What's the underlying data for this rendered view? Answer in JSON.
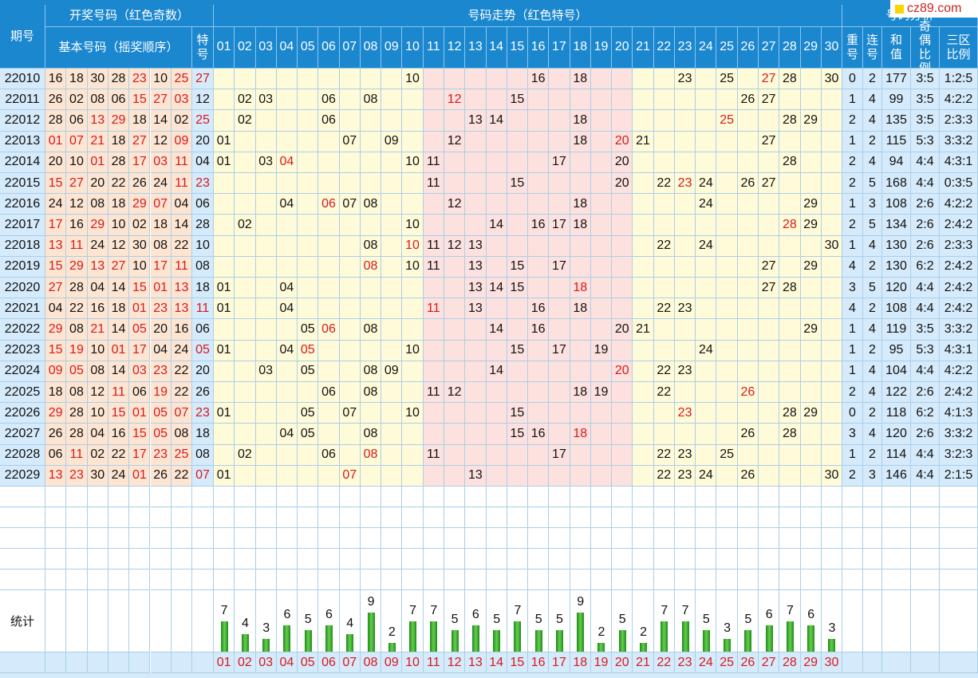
{
  "logo": "cz89.com",
  "headers": {
    "period": "期号",
    "draw": "开奖号码（红色奇数）",
    "basic": "基本号码（摇奖顺序）",
    "special": "特号",
    "trend": "号码走势（红色特号）",
    "analysis": "号码分析",
    "repeat": "重号",
    "consec": "连号",
    "sum": "和值",
    "oddeven": "奇偶比例",
    "zone": "三区比例"
  },
  "trend_cols": [
    "01",
    "02",
    "03",
    "04",
    "05",
    "06",
    "07",
    "08",
    "09",
    "10",
    "11",
    "12",
    "13",
    "14",
    "15",
    "16",
    "17",
    "18",
    "19",
    "20",
    "21",
    "22",
    "23",
    "24",
    "25",
    "26",
    "27",
    "28",
    "29",
    "30"
  ],
  "rows": [
    {
      "period": "22010",
      "basic": [
        "16",
        "18",
        "30",
        "28",
        "23",
        "10",
        "25"
      ],
      "special": "27",
      "trend": [
        "10",
        "16",
        "18",
        "23",
        "25",
        "27",
        "28",
        "30"
      ],
      "repeat": "0",
      "consec": "2",
      "sum": "177",
      "oddeven": "3:5",
      "zone": "1:2:5"
    },
    {
      "period": "22011",
      "basic": [
        "26",
        "02",
        "08",
        "06",
        "15",
        "27",
        "03"
      ],
      "special": "12",
      "trend": [
        "02",
        "03",
        "06",
        "08",
        "12",
        "15",
        "26",
        "27"
      ],
      "repeat": "1",
      "consec": "4",
      "sum": "99",
      "oddeven": "3:5",
      "zone": "4:2:2"
    },
    {
      "period": "22012",
      "basic": [
        "28",
        "06",
        "13",
        "29",
        "18",
        "14",
        "02"
      ],
      "special": "25",
      "trend": [
        "02",
        "06",
        "13",
        "14",
        "18",
        "25",
        "28",
        "29"
      ],
      "repeat": "2",
      "consec": "4",
      "sum": "135",
      "oddeven": "3:5",
      "zone": "2:3:3"
    },
    {
      "period": "22013",
      "basic": [
        "01",
        "07",
        "21",
        "18",
        "27",
        "12",
        "09"
      ],
      "special": "20",
      "trend": [
        "01",
        "07",
        "09",
        "12",
        "18",
        "20",
        "21",
        "27"
      ],
      "repeat": "1",
      "consec": "2",
      "sum": "115",
      "oddeven": "5:3",
      "zone": "3:3:2"
    },
    {
      "period": "22014",
      "basic": [
        "20",
        "10",
        "01",
        "28",
        "17",
        "03",
        "11"
      ],
      "special": "04",
      "trend": [
        "01",
        "03",
        "04",
        "10",
        "11",
        "17",
        "20",
        "28"
      ],
      "repeat": "2",
      "consec": "4",
      "sum": "94",
      "oddeven": "4:4",
      "zone": "4:3:1"
    },
    {
      "period": "22015",
      "basic": [
        "15",
        "27",
        "20",
        "22",
        "26",
        "24",
        "11"
      ],
      "special": "23",
      "trend": [
        "11",
        "15",
        "20",
        "22",
        "23",
        "24",
        "26",
        "27"
      ],
      "repeat": "2",
      "consec": "5",
      "sum": "168",
      "oddeven": "4:4",
      "zone": "0:3:5"
    },
    {
      "period": "22016",
      "basic": [
        "24",
        "12",
        "08",
        "18",
        "29",
        "07",
        "04"
      ],
      "special": "06",
      "trend": [
        "04",
        "06",
        "07",
        "08",
        "12",
        "18",
        "24",
        "29"
      ],
      "repeat": "1",
      "consec": "3",
      "sum": "108",
      "oddeven": "2:6",
      "zone": "4:2:2"
    },
    {
      "period": "22017",
      "basic": [
        "17",
        "16",
        "29",
        "10",
        "02",
        "18",
        "14"
      ],
      "special": "28",
      "trend": [
        "02",
        "10",
        "14",
        "16",
        "17",
        "18",
        "28",
        "29"
      ],
      "repeat": "2",
      "consec": "5",
      "sum": "134",
      "oddeven": "2:6",
      "zone": "2:4:2"
    },
    {
      "period": "22018",
      "basic": [
        "13",
        "11",
        "24",
        "12",
        "30",
        "08",
        "22"
      ],
      "special": "10",
      "trend": [
        "08",
        "10",
        "11",
        "12",
        "13",
        "22",
        "24",
        "30"
      ],
      "repeat": "1",
      "consec": "4",
      "sum": "130",
      "oddeven": "2:6",
      "zone": "2:3:3"
    },
    {
      "period": "22019",
      "basic": [
        "15",
        "29",
        "13",
        "27",
        "10",
        "17",
        "11"
      ],
      "special": "08",
      "trend": [
        "08",
        "10",
        "11",
        "13",
        "15",
        "17",
        "27",
        "29"
      ],
      "repeat": "4",
      "consec": "2",
      "sum": "130",
      "oddeven": "6:2",
      "zone": "2:4:2"
    },
    {
      "period": "22020",
      "basic": [
        "27",
        "28",
        "04",
        "14",
        "15",
        "01",
        "13"
      ],
      "special": "18",
      "trend": [
        "01",
        "04",
        "13",
        "14",
        "15",
        "18",
        "27",
        "28"
      ],
      "repeat": "3",
      "consec": "5",
      "sum": "120",
      "oddeven": "4:4",
      "zone": "2:4:2"
    },
    {
      "period": "22021",
      "basic": [
        "04",
        "22",
        "16",
        "18",
        "01",
        "23",
        "13"
      ],
      "special": "11",
      "trend": [
        "01",
        "04",
        "11",
        "13",
        "16",
        "18",
        "22",
        "23"
      ],
      "repeat": "4",
      "consec": "2",
      "sum": "108",
      "oddeven": "4:4",
      "zone": "2:4:2"
    },
    {
      "period": "22022",
      "basic": [
        "29",
        "08",
        "21",
        "14",
        "05",
        "20",
        "16"
      ],
      "special": "06",
      "trend": [
        "05",
        "06",
        "08",
        "14",
        "16",
        "20",
        "21",
        "29"
      ],
      "repeat": "1",
      "consec": "4",
      "sum": "119",
      "oddeven": "3:5",
      "zone": "3:3:2"
    },
    {
      "period": "22023",
      "basic": [
        "15",
        "19",
        "10",
        "01",
        "17",
        "04",
        "24"
      ],
      "special": "05",
      "trend": [
        "01",
        "04",
        "05",
        "10",
        "15",
        "17",
        "19",
        "24"
      ],
      "repeat": "1",
      "consec": "2",
      "sum": "95",
      "oddeven": "5:3",
      "zone": "4:3:1"
    },
    {
      "period": "22024",
      "basic": [
        "09",
        "05",
        "08",
        "14",
        "03",
        "23",
        "22"
      ],
      "special": "20",
      "trend": [
        "03",
        "05",
        "08",
        "09",
        "14",
        "20",
        "22",
        "23"
      ],
      "repeat": "1",
      "consec": "4",
      "sum": "104",
      "oddeven": "4:4",
      "zone": "4:2:2"
    },
    {
      "period": "22025",
      "basic": [
        "18",
        "08",
        "12",
        "11",
        "06",
        "19",
        "22"
      ],
      "special": "26",
      "trend": [
        "06",
        "08",
        "11",
        "12",
        "18",
        "19",
        "22",
        "26"
      ],
      "repeat": "2",
      "consec": "4",
      "sum": "122",
      "oddeven": "2:6",
      "zone": "2:4:2"
    },
    {
      "period": "22026",
      "basic": [
        "29",
        "28",
        "10",
        "15",
        "01",
        "05",
        "07"
      ],
      "special": "23",
      "trend": [
        "01",
        "05",
        "07",
        "10",
        "15",
        "23",
        "28",
        "29"
      ],
      "repeat": "0",
      "consec": "2",
      "sum": "118",
      "oddeven": "6:2",
      "zone": "4:1:3"
    },
    {
      "period": "22027",
      "basic": [
        "26",
        "28",
        "04",
        "16",
        "15",
        "05",
        "08"
      ],
      "special": "18",
      "trend": [
        "04",
        "05",
        "08",
        "15",
        "16",
        "18",
        "26",
        "28"
      ],
      "repeat": "3",
      "consec": "4",
      "sum": "120",
      "oddeven": "2:6",
      "zone": "3:3:2"
    },
    {
      "period": "22028",
      "basic": [
        "06",
        "11",
        "02",
        "22",
        "17",
        "23",
        "25"
      ],
      "special": "08",
      "trend": [
        "02",
        "06",
        "08",
        "11",
        "17",
        "22",
        "23",
        "25"
      ],
      "repeat": "1",
      "consec": "2",
      "sum": "114",
      "oddeven": "4:4",
      "zone": "3:2:3"
    },
    {
      "period": "22029",
      "basic": [
        "13",
        "23",
        "30",
        "24",
        "01",
        "26",
        "22"
      ],
      "special": "07",
      "trend": [
        "01",
        "07",
        "13",
        "22",
        "23",
        "24",
        "26",
        "30"
      ],
      "repeat": "2",
      "consec": "3",
      "sum": "146",
      "oddeven": "4:4",
      "zone": "2:1:5"
    }
  ],
  "stats_label": "统计",
  "chart_data": {
    "type": "bar",
    "categories": [
      "01",
      "02",
      "03",
      "04",
      "05",
      "06",
      "07",
      "08",
      "09",
      "10",
      "11",
      "12",
      "13",
      "14",
      "15",
      "16",
      "17",
      "18",
      "19",
      "20",
      "21",
      "22",
      "23",
      "24",
      "25",
      "26",
      "27",
      "28",
      "29",
      "30"
    ],
    "values": [
      7,
      4,
      3,
      6,
      5,
      6,
      4,
      9,
      2,
      7,
      7,
      5,
      6,
      5,
      7,
      5,
      5,
      9,
      2,
      5,
      2,
      7,
      7,
      5,
      3,
      5,
      6,
      7,
      6,
      3
    ],
    "title": "",
    "xlabel": "",
    "ylabel": ""
  },
  "colors": {
    "header": "#1b87cf",
    "yellow": "#fffbd9",
    "pink": "#fde1de",
    "blue": "#d5eafa",
    "red": "#d7191c",
    "bar": "#3fae2e"
  }
}
